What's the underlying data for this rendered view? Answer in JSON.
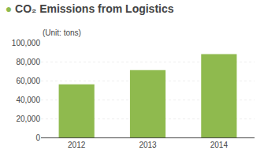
{
  "chart_data": {
    "type": "bar",
    "title": "● CO₂ Emissions from Logistics",
    "subtitle": "(Unit: tons)",
    "categories": [
      "2012",
      "2013",
      "2014"
    ],
    "values": [
      56000,
      71000,
      88000
    ],
    "color": "#8fba4e",
    "ylim": [
      0,
      100000
    ],
    "yticks": [
      0,
      {
        "value": 20000,
        "label": "20,000"
      },
      {
        "value": 40000,
        "label": "40,000"
      },
      {
        "value": 60000,
        "label": "60,000"
      },
      {
        "value": 80000,
        "label": "80,000"
      },
      {
        "value": 100000,
        "label": "100,000"
      }
    ],
    "grid": true
  }
}
